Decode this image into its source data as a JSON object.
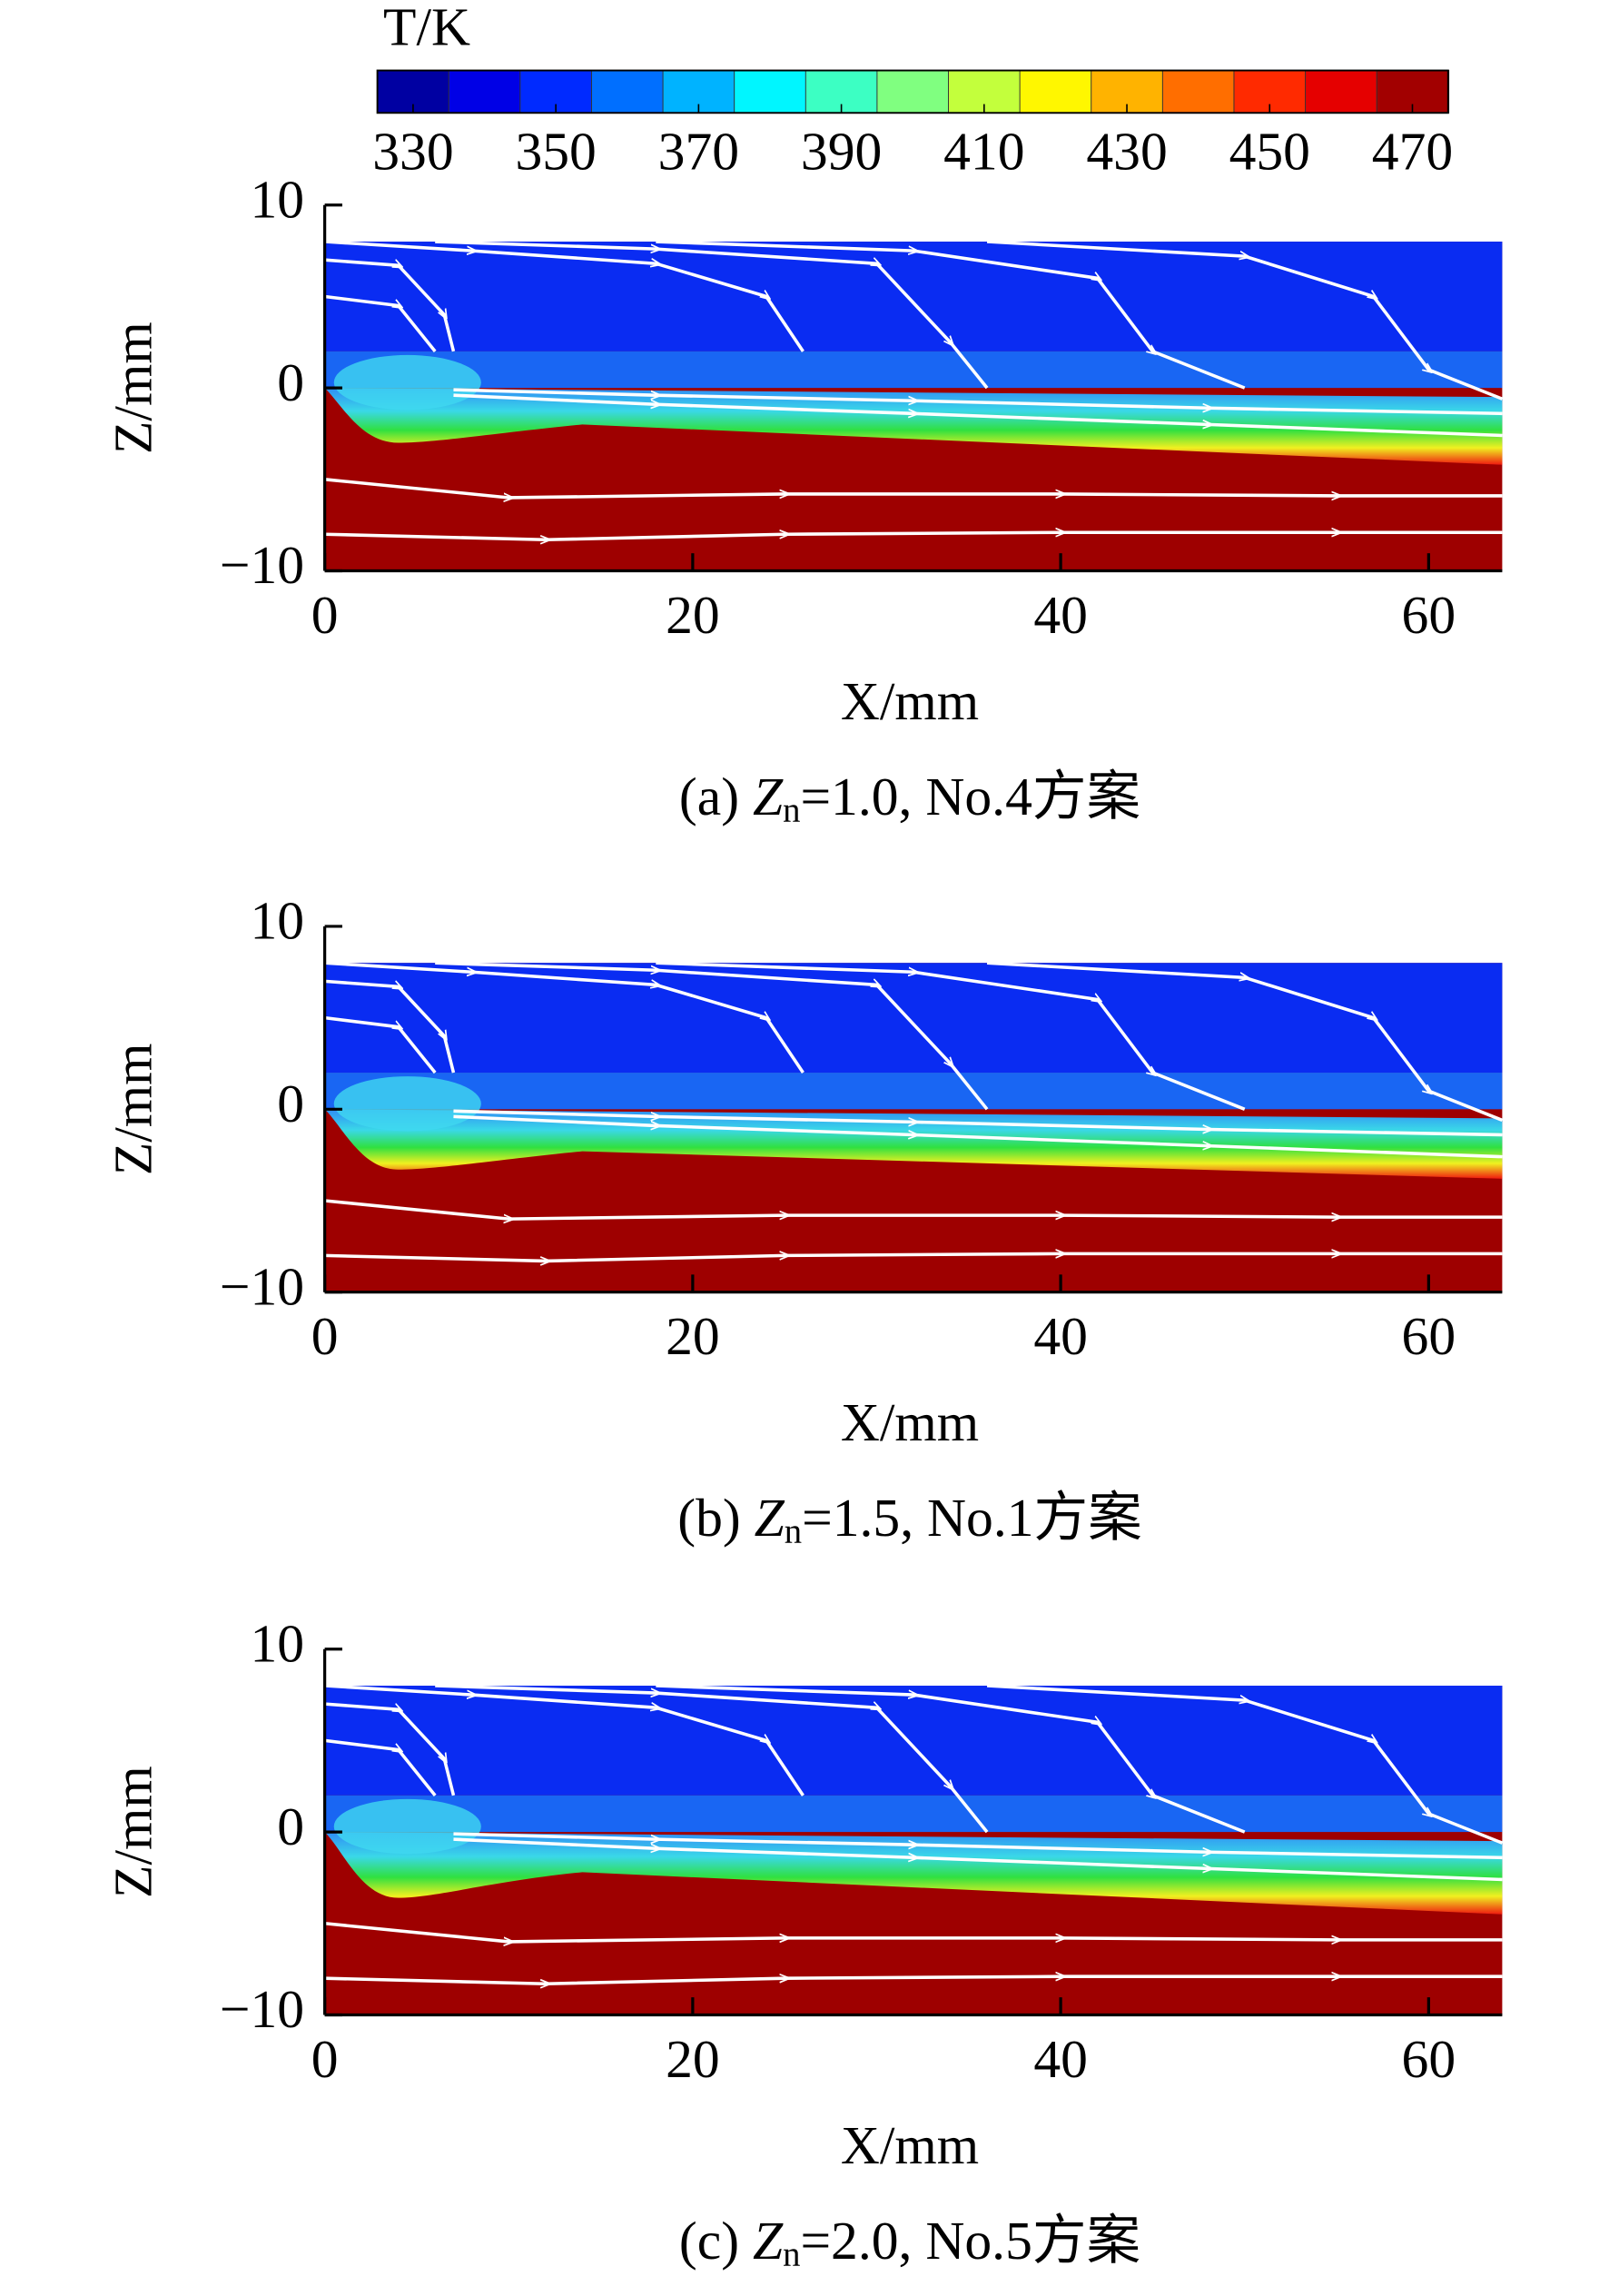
{
  "colorbar": {
    "title": "T/K",
    "clim": [
      325,
      475
    ],
    "ticks": [
      330,
      350,
      370,
      390,
      410,
      430,
      450,
      470
    ]
  },
  "chart_data": [
    {
      "type": "contour",
      "caption": [
        "(a) ",
        "Z",
        "n",
        "=1.0, No.4方案"
      ],
      "xlabel": "X/mm",
      "ylabel": "Z/mm",
      "xlim": [
        0,
        64
      ],
      "ylim": [
        -10,
        10
      ],
      "xticks": [
        0,
        20,
        40,
        60
      ],
      "yticks": [
        {
          "value": -10,
          "label": "−10"
        },
        0,
        10
      ]
    },
    {
      "type": "contour",
      "caption": [
        "(b) ",
        "Z",
        "n",
        "=1.5, No.1方案"
      ],
      "xlabel": "X/mm",
      "ylabel": "Z/mm",
      "xlim": [
        0,
        64
      ],
      "ylim": [
        -10,
        10
      ],
      "xticks": [
        0,
        20,
        40,
        60
      ],
      "yticks": [
        {
          "value": -10,
          "label": "−10"
        },
        0,
        10
      ]
    },
    {
      "type": "contour",
      "caption": [
        "(c) ",
        "Z",
        "n",
        "=2.0, No.5方案"
      ],
      "xlabel": "X/mm",
      "ylabel": "Z/mm",
      "xlim": [
        0,
        64
      ],
      "ylim": [
        -10,
        10
      ],
      "xticks": [
        0,
        20,
        40,
        60
      ],
      "yticks": [
        {
          "value": -10,
          "label": "−10"
        },
        0,
        10
      ]
    }
  ]
}
